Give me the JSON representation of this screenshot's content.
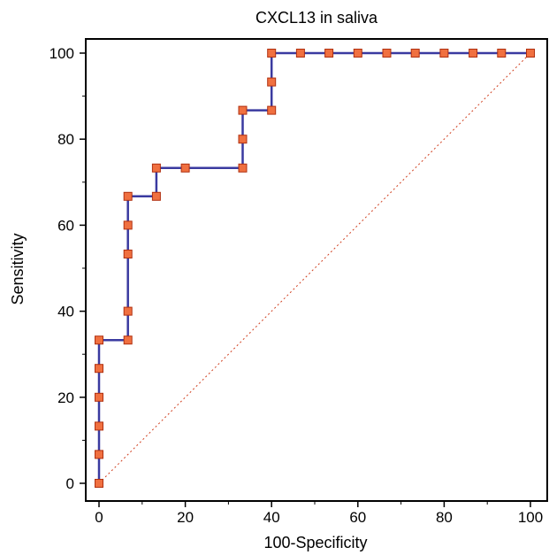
{
  "chart_data": {
    "type": "line",
    "title": "CXCL13 in saliva",
    "xlabel": "100-Specificity",
    "ylabel": "Sensitivity",
    "xlim": [
      0,
      100
    ],
    "ylim": [
      0,
      100
    ],
    "xticks": [
      0,
      20,
      40,
      60,
      80,
      100
    ],
    "yticks": [
      0,
      20,
      40,
      60,
      80,
      100
    ],
    "grid": false,
    "series": [
      {
        "kind": "roc-step",
        "color": "#3a3aa0",
        "marker_color": "#f07040",
        "points": [
          [
            0,
            0
          ],
          [
            0,
            6.7
          ],
          [
            0,
            13.3
          ],
          [
            0,
            20
          ],
          [
            0,
            26.7
          ],
          [
            0,
            33.3
          ],
          [
            6.7,
            33.3
          ],
          [
            6.7,
            40
          ],
          [
            6.7,
            53.3
          ],
          [
            6.7,
            60
          ],
          [
            6.7,
            66.7
          ],
          [
            13.3,
            66.7
          ],
          [
            13.3,
            73.3
          ],
          [
            20,
            73.3
          ],
          [
            33.3,
            73.3
          ],
          [
            33.3,
            80
          ],
          [
            33.3,
            86.7
          ],
          [
            40,
            86.7
          ],
          [
            40,
            93.3
          ],
          [
            40,
            100
          ],
          [
            46.7,
            100
          ],
          [
            53.3,
            100
          ],
          [
            60,
            100
          ],
          [
            66.7,
            100
          ],
          [
            73.3,
            100
          ],
          [
            80,
            100
          ],
          [
            86.7,
            100
          ],
          [
            93.3,
            100
          ],
          [
            100,
            100
          ]
        ]
      },
      {
        "kind": "reference-diagonal",
        "color": "#d04020",
        "points": [
          [
            0,
            0
          ],
          [
            100,
            100
          ]
        ]
      }
    ]
  }
}
